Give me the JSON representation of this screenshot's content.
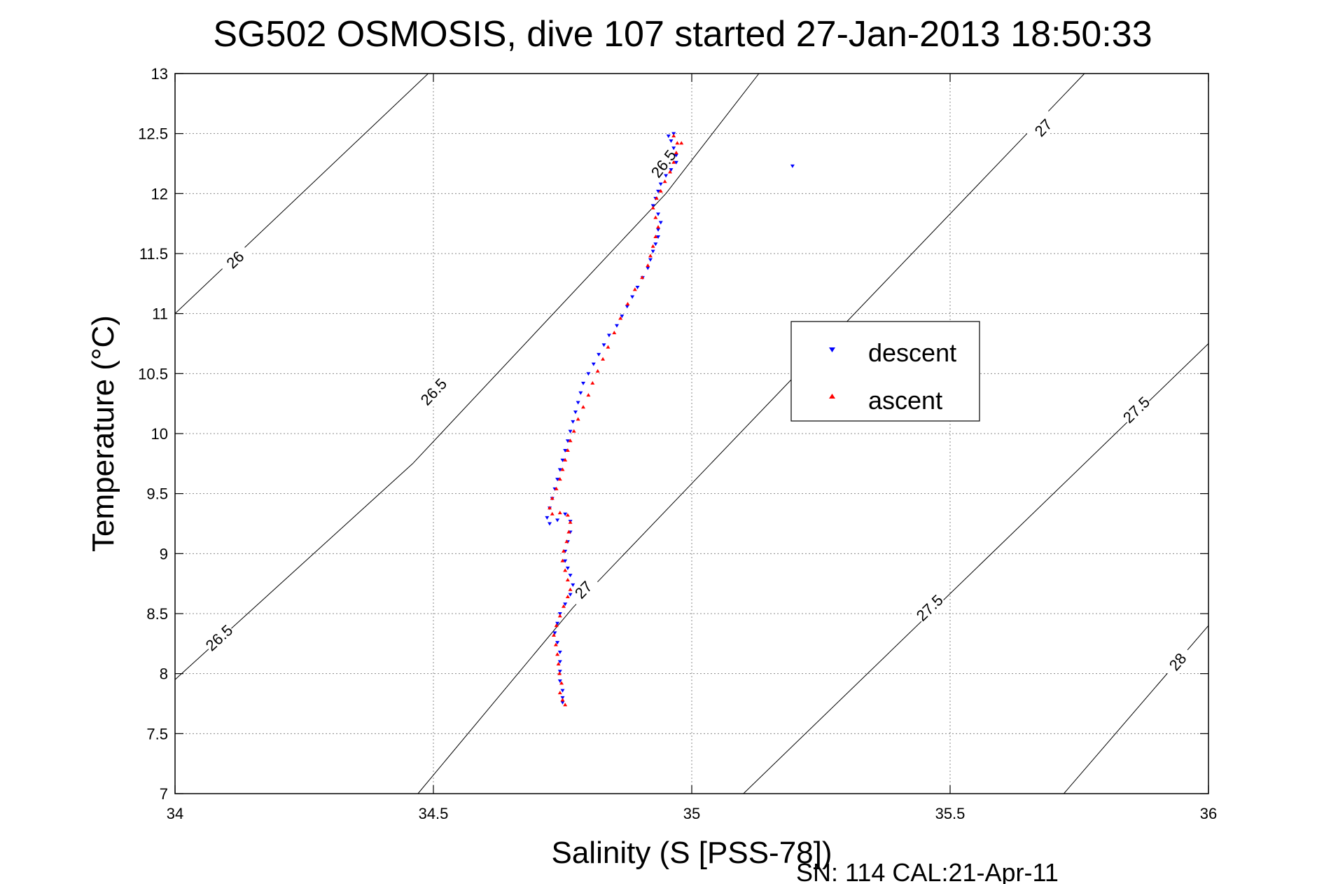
{
  "chart_data": {
    "type": "scatter",
    "title": "SG502 OSMOSIS, dive 107 started 27-Jan-2013 18:50:33",
    "xlabel": "Salinity (S [PSS-78])",
    "ylabel": "Temperature (°C)",
    "xlim": [
      34,
      36
    ],
    "ylim": [
      7,
      13
    ],
    "x_ticks": [
      34,
      34.5,
      35,
      35.5,
      36
    ],
    "x_tick_labels": [
      "34",
      "34.5",
      "35",
      "35.5",
      "36"
    ],
    "y_ticks": [
      7,
      7.5,
      8,
      8.5,
      9,
      9.5,
      10,
      10.5,
      11,
      11.5,
      12,
      12.5,
      13
    ],
    "y_tick_labels": [
      "7",
      "7.5",
      "8",
      "8.5",
      "9",
      "9.5",
      "10",
      "10.5",
      "11",
      "11.5",
      "12",
      "12.5",
      "13"
    ],
    "grid": true,
    "legend_position": "right",
    "footer": "SN: 114  CAL:21-Apr-11",
    "colors": {
      "descent": "#0000ff",
      "ascent": "#ff0000",
      "contour": "#000000"
    },
    "series": [
      {
        "name": "descent",
        "marker": "triangle-down",
        "points": [
          [
            34.965,
            12.5
          ],
          [
            34.955,
            12.48
          ],
          [
            34.96,
            12.44
          ],
          [
            34.965,
            12.38
          ],
          [
            34.97,
            12.32
          ],
          [
            34.97,
            12.26
          ],
          [
            34.96,
            12.2
          ],
          [
            34.95,
            12.15
          ],
          [
            34.94,
            12.08
          ],
          [
            34.935,
            12.02
          ],
          [
            34.93,
            11.96
          ],
          [
            34.925,
            11.9
          ],
          [
            34.935,
            11.83
          ],
          [
            34.94,
            11.76
          ],
          [
            34.935,
            11.7
          ],
          [
            34.935,
            11.64
          ],
          [
            34.93,
            11.58
          ],
          [
            34.925,
            11.52
          ],
          [
            34.92,
            11.45
          ],
          [
            34.915,
            11.38
          ],
          [
            34.905,
            11.3
          ],
          [
            34.895,
            11.22
          ],
          [
            34.885,
            11.14
          ],
          [
            34.875,
            11.06
          ],
          [
            34.865,
            10.98
          ],
          [
            34.855,
            10.9
          ],
          [
            34.84,
            10.82
          ],
          [
            34.83,
            10.74
          ],
          [
            34.82,
            10.66
          ],
          [
            34.81,
            10.58
          ],
          [
            34.8,
            10.5
          ],
          [
            34.79,
            10.42
          ],
          [
            34.785,
            10.34
          ],
          [
            34.78,
            10.26
          ],
          [
            34.775,
            10.18
          ],
          [
            34.77,
            10.1
          ],
          [
            34.765,
            10.02
          ],
          [
            34.76,
            9.94
          ],
          [
            34.755,
            9.86
          ],
          [
            34.75,
            9.78
          ],
          [
            34.745,
            9.7
          ],
          [
            34.74,
            9.62
          ],
          [
            34.735,
            9.54
          ],
          [
            34.73,
            9.46
          ],
          [
            34.725,
            9.38
          ],
          [
            34.72,
            9.3
          ],
          [
            34.725,
            9.25
          ],
          [
            34.74,
            9.28
          ],
          [
            34.755,
            9.33
          ],
          [
            34.765,
            9.27
          ],
          [
            34.765,
            9.18
          ],
          [
            34.76,
            9.1
          ],
          [
            34.755,
            9.02
          ],
          [
            34.755,
            8.94
          ],
          [
            34.76,
            8.88
          ],
          [
            34.765,
            8.82
          ],
          [
            34.77,
            8.74
          ],
          [
            34.765,
            8.66
          ],
          [
            34.755,
            8.58
          ],
          [
            34.745,
            8.5
          ],
          [
            34.74,
            8.42
          ],
          [
            34.735,
            8.34
          ],
          [
            34.74,
            8.26
          ],
          [
            34.745,
            8.18
          ],
          [
            34.745,
            8.1
          ],
          [
            34.745,
            8.02
          ],
          [
            34.745,
            7.94
          ],
          [
            34.75,
            7.86
          ],
          [
            34.75,
            7.8
          ],
          [
            34.75,
            7.76
          ],
          [
            35.195,
            12.23
          ]
        ]
      },
      {
        "name": "ascent",
        "marker": "triangle-up",
        "points": [
          [
            34.755,
            7.74
          ],
          [
            34.75,
            7.78
          ],
          [
            34.745,
            7.84
          ],
          [
            34.748,
            7.92
          ],
          [
            34.744,
            8.0
          ],
          [
            34.742,
            8.08
          ],
          [
            34.74,
            8.16
          ],
          [
            34.737,
            8.24
          ],
          [
            34.733,
            8.32
          ],
          [
            34.738,
            8.4
          ],
          [
            34.745,
            8.48
          ],
          [
            34.752,
            8.56
          ],
          [
            34.76,
            8.64
          ],
          [
            34.765,
            8.7
          ],
          [
            34.76,
            8.78
          ],
          [
            34.755,
            8.86
          ],
          [
            34.75,
            8.94
          ],
          [
            34.752,
            9.02
          ],
          [
            34.758,
            9.1
          ],
          [
            34.762,
            9.18
          ],
          [
            34.765,
            9.26
          ],
          [
            34.76,
            9.32
          ],
          [
            34.745,
            9.34
          ],
          [
            34.73,
            9.33
          ],
          [
            34.725,
            9.38
          ],
          [
            34.73,
            9.46
          ],
          [
            34.738,
            9.54
          ],
          [
            34.745,
            9.62
          ],
          [
            34.75,
            9.7
          ],
          [
            34.755,
            9.78
          ],
          [
            34.76,
            9.86
          ],
          [
            34.765,
            9.94
          ],
          [
            34.772,
            10.02
          ],
          [
            34.78,
            10.12
          ],
          [
            34.79,
            10.22
          ],
          [
            34.8,
            10.32
          ],
          [
            34.808,
            10.42
          ],
          [
            34.818,
            10.52
          ],
          [
            34.828,
            10.62
          ],
          [
            34.838,
            10.72
          ],
          [
            34.85,
            10.84
          ],
          [
            34.862,
            10.96
          ],
          [
            34.876,
            11.08
          ],
          [
            34.89,
            11.2
          ],
          [
            34.904,
            11.3
          ],
          [
            34.915,
            11.4
          ],
          [
            34.92,
            11.48
          ],
          [
            34.925,
            11.56
          ],
          [
            34.93,
            11.64
          ],
          [
            34.935,
            11.72
          ],
          [
            34.93,
            11.8
          ],
          [
            34.925,
            11.88
          ],
          [
            34.932,
            11.96
          ],
          [
            34.94,
            12.02
          ],
          [
            34.948,
            12.1
          ],
          [
            34.958,
            12.18
          ],
          [
            34.965,
            12.26
          ],
          [
            34.97,
            12.34
          ],
          [
            34.972,
            12.42
          ],
          [
            34.965,
            12.48
          ],
          [
            34.98,
            12.42
          ]
        ]
      }
    ],
    "density_contours": [
      {
        "sigma": "26",
        "segments": [
          [
            [
              34.0,
              11.0
            ],
            [
              34.49,
              13.0
            ]
          ]
        ],
        "labels": [
          {
            "text": "26",
            "s": 34.116,
            "t": 11.45
          }
        ]
      },
      {
        "sigma": "26.5",
        "segments": [
          [
            [
              34.0,
              7.95
            ],
            [
              34.46,
              9.75
            ]
          ],
          [
            [
              34.46,
              9.75
            ],
            [
              34.95,
              12.0
            ],
            [
              35.13,
              13.0
            ]
          ]
        ],
        "labels": [
          {
            "text": "26.5",
            "s": 34.085,
            "t": 8.3
          },
          {
            "text": "26.5",
            "s": 34.5,
            "t": 10.35
          },
          {
            "text": "26.5",
            "s": 34.945,
            "t": 12.25
          }
        ]
      },
      {
        "sigma": "27",
        "segments": [
          [
            [
              34.47,
              7.0
            ],
            [
              34.77,
              8.55
            ],
            [
              35.76,
              13.0
            ]
          ]
        ],
        "labels": [
          {
            "text": "27",
            "s": 34.79,
            "t": 8.7
          },
          {
            "text": "27",
            "s": 35.68,
            "t": 12.55
          }
        ]
      },
      {
        "sigma": "27.5",
        "segments": [
          [
            [
              35.1,
              7.0
            ],
            [
              36.0,
              10.75
            ]
          ]
        ],
        "labels": [
          {
            "text": "27.5",
            "s": 35.46,
            "t": 8.55
          },
          {
            "text": "27.5",
            "s": 35.86,
            "t": 10.2
          }
        ]
      },
      {
        "sigma": "28",
        "segments": [
          [
            [
              35.72,
              7.0
            ],
            [
              36.0,
              8.4
            ]
          ]
        ],
        "labels": [
          {
            "text": "28",
            "s": 35.94,
            "t": 8.1
          }
        ]
      }
    ]
  }
}
